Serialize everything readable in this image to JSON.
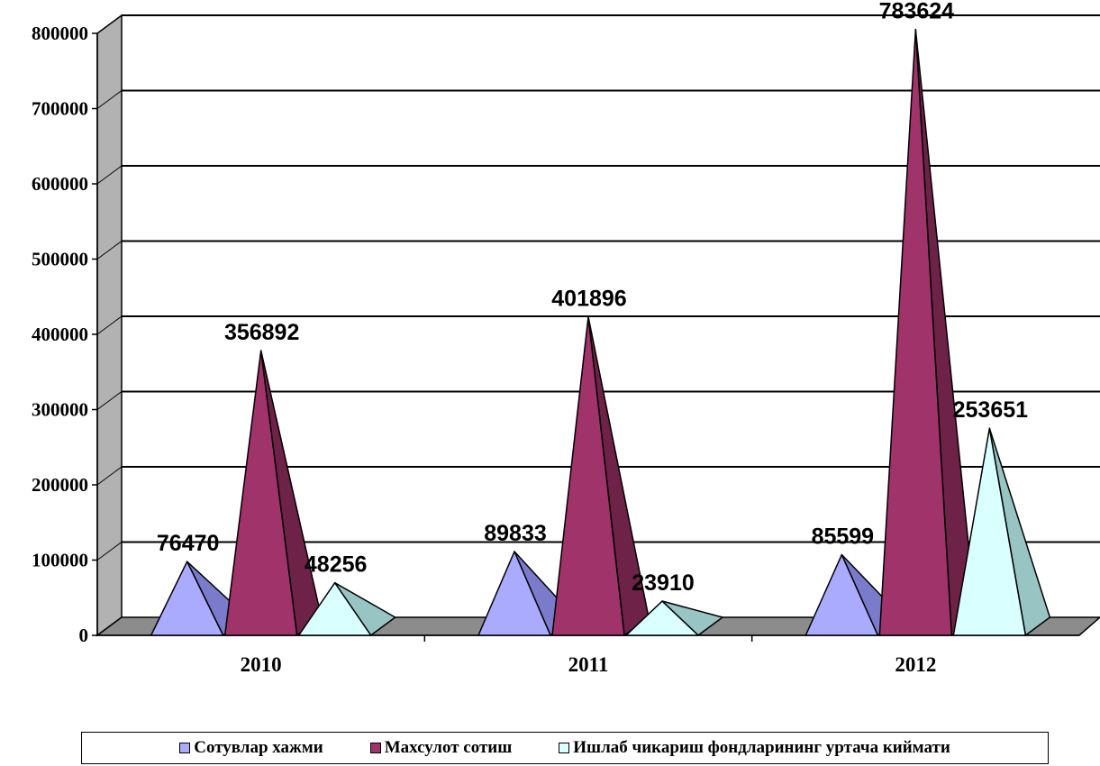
{
  "chart_data": {
    "type": "bar",
    "categories": [
      "2010",
      "2011",
      "2012"
    ],
    "series": [
      {
        "name": "Сотувлар хажми",
        "values": [
          76470,
          89833,
          85599
        ],
        "color": "#aaaaff",
        "side_color": "#7b7bcc"
      },
      {
        "name": "Махсулот сотиш",
        "values": [
          356892,
          401896,
          783624
        ],
        "color": "#a0336a",
        "side_color": "#6e2248"
      },
      {
        "name": "Ишлаб чикариш фондларининг уртача киймати",
        "values": [
          48256,
          23910,
          253651
        ],
        "color": "#d9ffff",
        "side_color": "#99c4c4"
      }
    ],
    "data_labels": [
      [
        "76470",
        "89833",
        "85599"
      ],
      [
        "356892",
        "401896",
        "783624"
      ],
      [
        "48256",
        "23910",
        "253651"
      ]
    ],
    "y_ticks": [
      "0",
      "100000",
      "200000",
      "300000",
      "400000",
      "500000",
      "600000",
      "700000",
      "800000"
    ],
    "ylim": [
      0,
      800000
    ],
    "grid": true,
    "legend_position": "bottom",
    "mark_shape": "pyramid-3d",
    "wall_color": "#b2b2b2",
    "floor_color": "#8c8c8c"
  }
}
